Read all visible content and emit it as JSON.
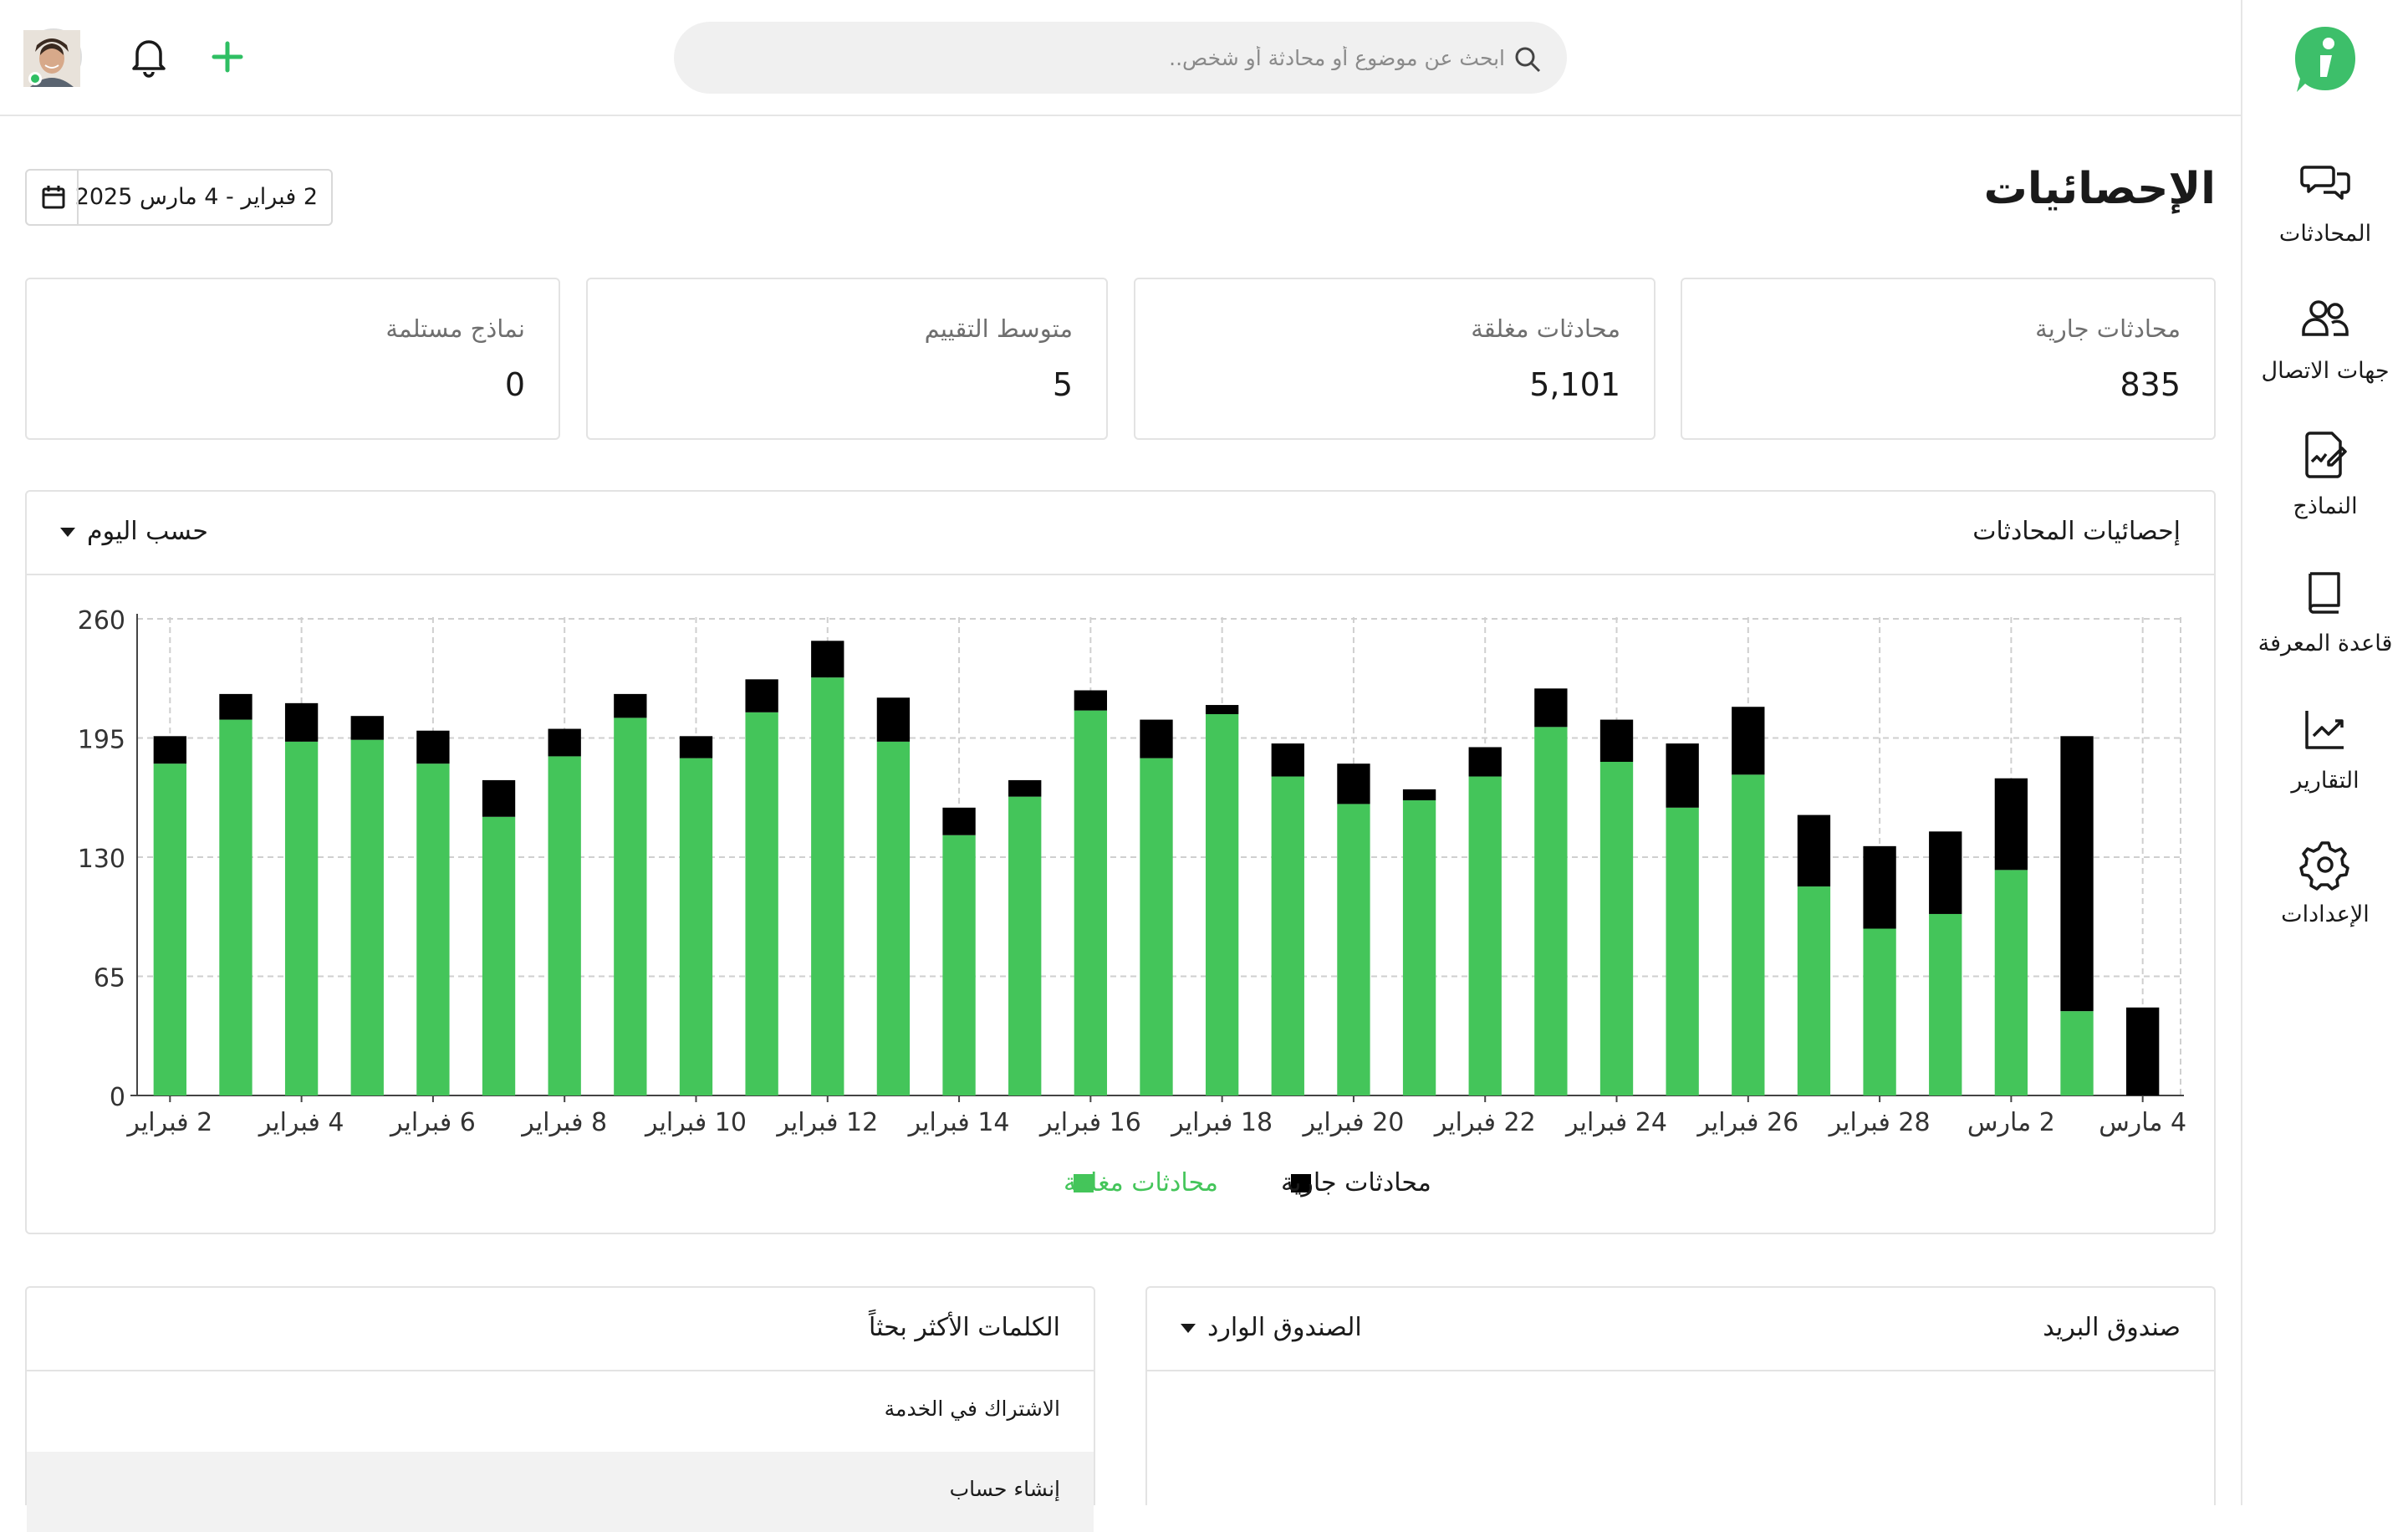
{
  "search": {
    "placeholder": "ابحث عن موضوع أو محادثة أو شخص.."
  },
  "sidebar": {
    "items": [
      {
        "label": "المحادثات",
        "icon": "chat-bubbles-icon"
      },
      {
        "label": "جهات الاتصال",
        "icon": "contacts-icon"
      },
      {
        "label": "النماذج",
        "icon": "form-edit-icon"
      },
      {
        "label": "قاعدة المعرفة",
        "icon": "book-icon"
      },
      {
        "label": "التقارير",
        "icon": "trend-chart-icon"
      },
      {
        "label": "الإعدادات",
        "icon": "gear-icon"
      }
    ]
  },
  "header": {
    "title": "الإحصائيات",
    "date_range": "2 فبراير - 4 مارس 2025"
  },
  "kpis": [
    {
      "label": "محادثات جارية",
      "value": "835"
    },
    {
      "label": "محادثات مغلقة",
      "value": "5,101"
    },
    {
      "label": "متوسط التقييم",
      "value": "5"
    },
    {
      "label": "نماذج مستلمة",
      "value": "0"
    }
  ],
  "chart_panel": {
    "title": "إحصائيات المحادثات",
    "grouping": "حسب اليوم"
  },
  "chart_data": {
    "type": "bar",
    "stacked": true,
    "ylim": [
      0,
      260
    ],
    "yticks": [
      0,
      65,
      130,
      195,
      260
    ],
    "grid": true,
    "legend_position": "bottom-center",
    "x_tick_labels": [
      "2 فبراير",
      "4 فبراير",
      "6 فبراير",
      "8 فبراير",
      "10 فبراير",
      "12 فبراير",
      "14 فبراير",
      "16 فبراير",
      "18 فبراير",
      "20 فبراير",
      "22 فبراير",
      "24 فبراير",
      "26 فبراير",
      "28 فبراير",
      "2 مارس",
      "4 مارس"
    ],
    "series": [
      {
        "name": "محادثات مغلقة",
        "color": "#44c55a",
        "values": [
          181,
          205,
          193,
          194,
          181,
          152,
          185,
          206,
          184,
          209,
          228,
          193,
          142,
          163,
          210,
          184,
          208,
          174,
          159,
          161,
          174,
          201,
          182,
          157,
          175,
          114,
          91,
          99,
          123,
          46,
          0
        ]
      },
      {
        "name": "محادثات جارية",
        "color": "#000000",
        "values": [
          15,
          14,
          21,
          13,
          18,
          20,
          15,
          13,
          12,
          18,
          20,
          24,
          15,
          9,
          11,
          21,
          5,
          18,
          22,
          6,
          16,
          21,
          23,
          35,
          37,
          39,
          45,
          45,
          50,
          150,
          48
        ]
      }
    ]
  },
  "inbox_panel": {
    "title": "صندوق البريد",
    "selected": "الصندوق الوارد"
  },
  "keywords_panel": {
    "title": "الكلمات الأكثر بحثاً",
    "items": [
      "الاشتراك في الخدمة",
      "إنشاء حساب"
    ]
  }
}
